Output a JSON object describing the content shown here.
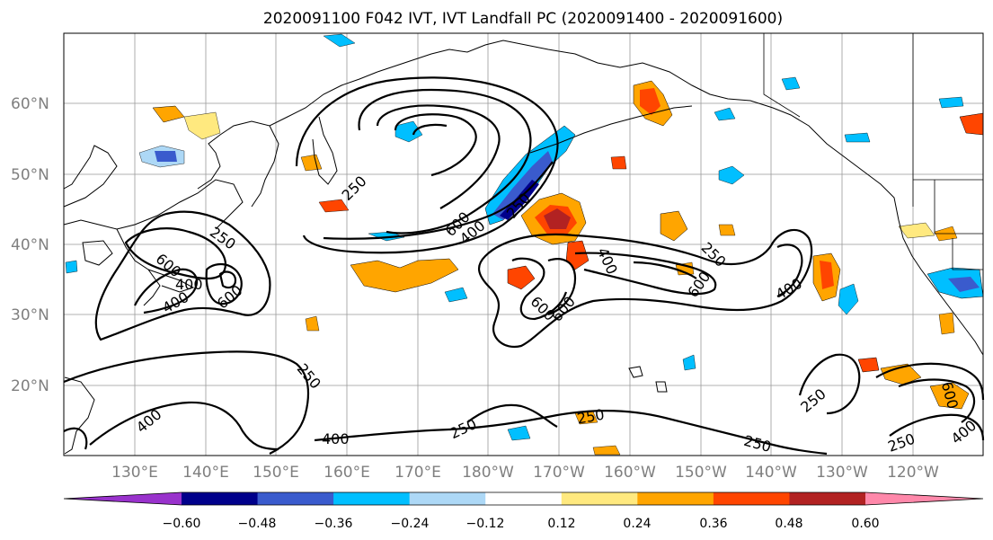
{
  "title": "2020091100 F042 IVT, IVT Landfall PC (2020091400 - 2020091600)",
  "map": {
    "lon_labels": [
      "130°E",
      "140°E",
      "150°E",
      "160°E",
      "170°E",
      "180°W",
      "170°W",
      "160°W",
      "150°W",
      "140°W",
      "130°W",
      "120°W"
    ],
    "lat_labels": [
      "60°N",
      "50°N",
      "40°N",
      "30°N",
      "20°N"
    ],
    "extent": {
      "lon_min": 120,
      "lon_max": 250,
      "lat_min": 10,
      "lat_max": 70
    }
  },
  "contour_labels": [
    "250",
    "600",
    "400",
    "250",
    "600",
    "400",
    "600",
    "250",
    "600",
    "400",
    "250",
    "600",
    "400",
    "400",
    "250",
    "250",
    "250",
    "250",
    "250",
    "250",
    "400",
    "400",
    "600",
    "400",
    "600",
    "250",
    "600",
    "400",
    "250"
  ],
  "colorbar": {
    "ticks": [
      "−0.60",
      "−0.48",
      "−0.36",
      "−0.24",
      "−0.12",
      "0.12",
      "0.24",
      "0.36",
      "0.48",
      "0.60"
    ],
    "colors": [
      "#9932cc",
      "#00008b",
      "#3a5bcd",
      "#00bfff",
      "#add8f6",
      "#ffffff",
      "#ffe97f",
      "#ffa500",
      "#ff4500",
      "#b22222",
      "#ff88aa"
    ]
  }
}
